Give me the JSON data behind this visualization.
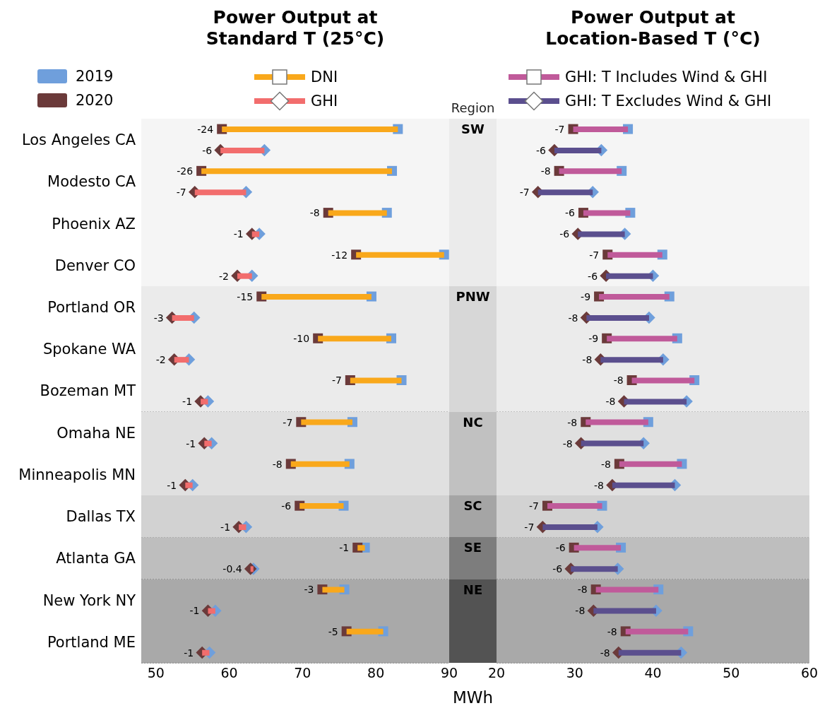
{
  "chart_data": [
    {
      "type": "bar",
      "orientation": "horizontal",
      "title": "Power Output at Standard T (25°C)",
      "xlabel": "MWh",
      "annotations": [
        "Region"
      ],
      "categories": [
        "Los Angeles CA",
        "Modesto CA",
        "Phoenix AZ",
        "Denver CO",
        "Portland OR",
        "Spokane WA",
        "Bozeman MT",
        "Omaha NE",
        "Minneapolis MN",
        "Dallas TX",
        "Atlanta GA",
        "New York NY",
        "Portland ME"
      ],
      "xlim": [
        48,
        90
      ],
      "xticks": [
        50,
        60,
        70,
        80,
        90
      ],
      "grid": "y",
      "legend": "top",
      "bands": [
        {
          "axis": "y",
          "from": "Los Angeles CA",
          "to": "Denver CO",
          "label": "SW",
          "color": "#f5f5f5"
        },
        {
          "axis": "y",
          "from": "Portland OR",
          "to": "Bozeman MT",
          "label": "PNW",
          "color": "#ebebeb"
        },
        {
          "axis": "y",
          "from": "Omaha NE",
          "to": "Minneapolis MN",
          "label": "NC",
          "color": "#e0e0e0"
        },
        {
          "axis": "y",
          "from": "Dallas TX",
          "to": "Dallas TX",
          "label": "SC",
          "color": "#d2d2d2"
        },
        {
          "axis": "y",
          "from": "Atlanta GA",
          "to": "Atlanta GA",
          "label": "SE",
          "color": "#bebebe"
        },
        {
          "axis": "y",
          "from": "New York NY",
          "to": "Portland ME",
          "label": "NE",
          "color": "#a9a9a9"
        }
      ],
      "series": [
        {
          "name": "DNI",
          "color": "#f9a81b",
          "marker": "square",
          "base": [
            83.0,
            82.2,
            81.5,
            89.3,
            79.4,
            82.1,
            83.5,
            76.8,
            76.4,
            75.6,
            78.5,
            75.7,
            81.0
          ],
          "values": [
            -24,
            -26,
            -8,
            -12,
            -15,
            -10,
            -7,
            -7,
            -8,
            -6,
            -1,
            -3,
            -5
          ],
          "value_labels": [
            "-24",
            "-26",
            "-8",
            "-12",
            "-15",
            "-10",
            "-7",
            "-7",
            "-8",
            "-6",
            "-1",
            "-3",
            "-5"
          ]
        },
        {
          "name": "GHI",
          "color": "#f26d6d",
          "marker": "diamond",
          "base": [
            64.8,
            62.3,
            64.1,
            63.1,
            55.2,
            54.5,
            57.1,
            57.6,
            55.0,
            62.3,
            63.3,
            58.1,
            57.3
          ],
          "values": [
            -6,
            -7,
            -1,
            -2,
            -3,
            -2,
            -1,
            -1,
            -1,
            -1,
            -0.4,
            -1,
            -1
          ],
          "value_labels": [
            "-6",
            "-7",
            "-1",
            "-2",
            "-3",
            "-2",
            "-1",
            "-1",
            "-1",
            "-1",
            "-0.4",
            "-1",
            "-1"
          ]
        },
        {
          "name": "2019",
          "type": "scatter",
          "color": "#6f9fdc",
          "marker": "square",
          "values": [
            83.0,
            82.2,
            81.5,
            89.3,
            79.4,
            82.1,
            83.5,
            76.8,
            76.4,
            75.6,
            78.5,
            75.7,
            81.0
          ]
        },
        {
          "name": "2020",
          "type": "scatter",
          "color": "#6b3a3a",
          "marker": "square",
          "values": [
            59.0,
            56.2,
            73.5,
            77.3,
            64.4,
            72.1,
            76.5,
            69.8,
            68.4,
            69.6,
            77.5,
            72.7,
            76.0
          ]
        },
        {
          "type": "scatter",
          "color": "#6f9fdc",
          "marker": "diamond",
          "values": [
            64.8,
            62.3,
            64.1,
            63.1,
            55.2,
            54.5,
            57.1,
            57.6,
            55.0,
            62.3,
            63.3,
            58.1,
            57.3
          ]
        },
        {
          "type": "scatter",
          "color": "#6b3a3a",
          "marker": "diamond",
          "values": [
            58.8,
            55.3,
            63.1,
            61.1,
            52.2,
            52.5,
            56.1,
            56.6,
            54.0,
            61.3,
            62.9,
            57.1,
            56.3
          ]
        }
      ]
    },
    {
      "type": "bar",
      "orientation": "horizontal",
      "title": "Power Output at Location-Based T (°C)",
      "tick_labels": "x",
      "categories": [
        "Los Angeles CA",
        "Modesto CA",
        "Phoenix AZ",
        "Denver CO",
        "Portland OR",
        "Spokane WA",
        "Bozeman MT",
        "Omaha NE",
        "Minneapolis MN",
        "Dallas TX",
        "Atlanta GA",
        "New York NY",
        "Portland ME"
      ],
      "xlim": [
        20,
        60
      ],
      "xticks": [
        20,
        30,
        40,
        50,
        60
      ],
      "grid": "y",
      "legend": "top",
      "bands": [
        {
          "axis": "y",
          "from": "Los Angeles CA",
          "to": "Denver CO",
          "color": "#f5f5f5"
        },
        {
          "axis": "y",
          "from": "Portland OR",
          "to": "Bozeman MT",
          "color": "#ebebeb"
        },
        {
          "axis": "y",
          "from": "Omaha NE",
          "to": "Minneapolis MN",
          "color": "#e0e0e0"
        },
        {
          "axis": "y",
          "from": "Dallas TX",
          "to": "Dallas TX",
          "color": "#d2d2d2"
        },
        {
          "axis": "y",
          "from": "Atlanta GA",
          "to": "Atlanta GA",
          "color": "#bebebe"
        },
        {
          "axis": "y",
          "from": "New York NY",
          "to": "Portland ME",
          "color": "#a9a9a9"
        }
      ],
      "series": [
        {
          "name": "GHI: T Includes Wind & GHI",
          "color": "#c05a9a",
          "marker": "square",
          "base": [
            36.8,
            36.0,
            37.1,
            41.2,
            42.1,
            43.1,
            45.3,
            39.4,
            43.7,
            33.5,
            35.9,
            40.7,
            44.5
          ],
          "values": [
            -7,
            -8,
            -6,
            -7,
            -9,
            -9,
            -8,
            -8,
            -8,
            -7,
            -6,
            -8,
            -8
          ],
          "value_labels": [
            "-7",
            "-8",
            "-6",
            "-7",
            "-9",
            "-9",
            "-8",
            "-8",
            "-8",
            "-7",
            "-6",
            "-8",
            "-8"
          ]
        },
        {
          "name": "GHI: T Excludes Wind & GHI",
          "color": "#5b4f8e",
          "marker": "diamond",
          "base": [
            33.4,
            32.3,
            36.4,
            40.0,
            39.5,
            41.3,
            44.3,
            38.8,
            42.8,
            32.9,
            35.5,
            40.4,
            43.6
          ],
          "values": [
            -6,
            -7,
            -6,
            -6,
            -8,
            -8,
            -8,
            -8,
            -8,
            -7,
            -6,
            -8,
            -8
          ],
          "value_labels": [
            "-6",
            "-7",
            "-6",
            "-6",
            "-8",
            "-8",
            "-8",
            "-8",
            "-8",
            "-7",
            "-6",
            "-8",
            "-8"
          ]
        },
        {
          "type": "scatter",
          "color": "#6f9fdc",
          "marker": "square",
          "values": [
            36.8,
            36.0,
            37.1,
            41.2,
            42.1,
            43.1,
            45.3,
            39.4,
            43.7,
            33.5,
            35.9,
            40.7,
            44.5
          ]
        },
        {
          "type": "scatter",
          "color": "#6b3a3a",
          "marker": "square",
          "values": [
            29.8,
            28.0,
            31.1,
            34.2,
            33.1,
            34.1,
            37.3,
            31.4,
            35.7,
            26.5,
            29.9,
            32.7,
            36.5
          ]
        },
        {
          "type": "scatter",
          "color": "#6f9fdc",
          "marker": "diamond",
          "values": [
            33.4,
            32.3,
            36.4,
            40.0,
            39.5,
            41.3,
            44.3,
            38.8,
            42.8,
            32.9,
            35.5,
            40.4,
            43.6
          ]
        },
        {
          "type": "scatter",
          "color": "#6b3a3a",
          "marker": "diamond",
          "values": [
            27.4,
            25.3,
            30.4,
            34.0,
            31.5,
            33.3,
            36.3,
            30.8,
            34.8,
            25.9,
            29.5,
            32.4,
            35.6
          ]
        }
      ]
    }
  ]
}
